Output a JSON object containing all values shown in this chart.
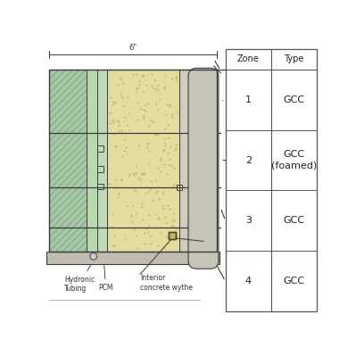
{
  "bg_color": "#ffffff",
  "border_color": "#3a3a3a",
  "green_hatch_color": "#a8c8a8",
  "green_solid_color": "#b8d8b0",
  "green_inner_color": "#c0dab8",
  "yellow_color": "#e5dda0",
  "gray_color": "#c8c5b8",
  "gray_light_color": "#d8d5c8",
  "table_line_color": "#555555",
  "label_color": "#333333",
  "dim_text": "6\"",
  "zone_numbers": [
    "1",
    "2",
    "3",
    "4"
  ],
  "zone_types": [
    "GCC",
    "GCC\n(foamed)",
    "GCC",
    "GCC"
  ],
  "label_hydronic": "Hydronic\nTubing",
  "label_pcm": "PCM",
  "label_interior": "Interior\nconcrete wythe"
}
